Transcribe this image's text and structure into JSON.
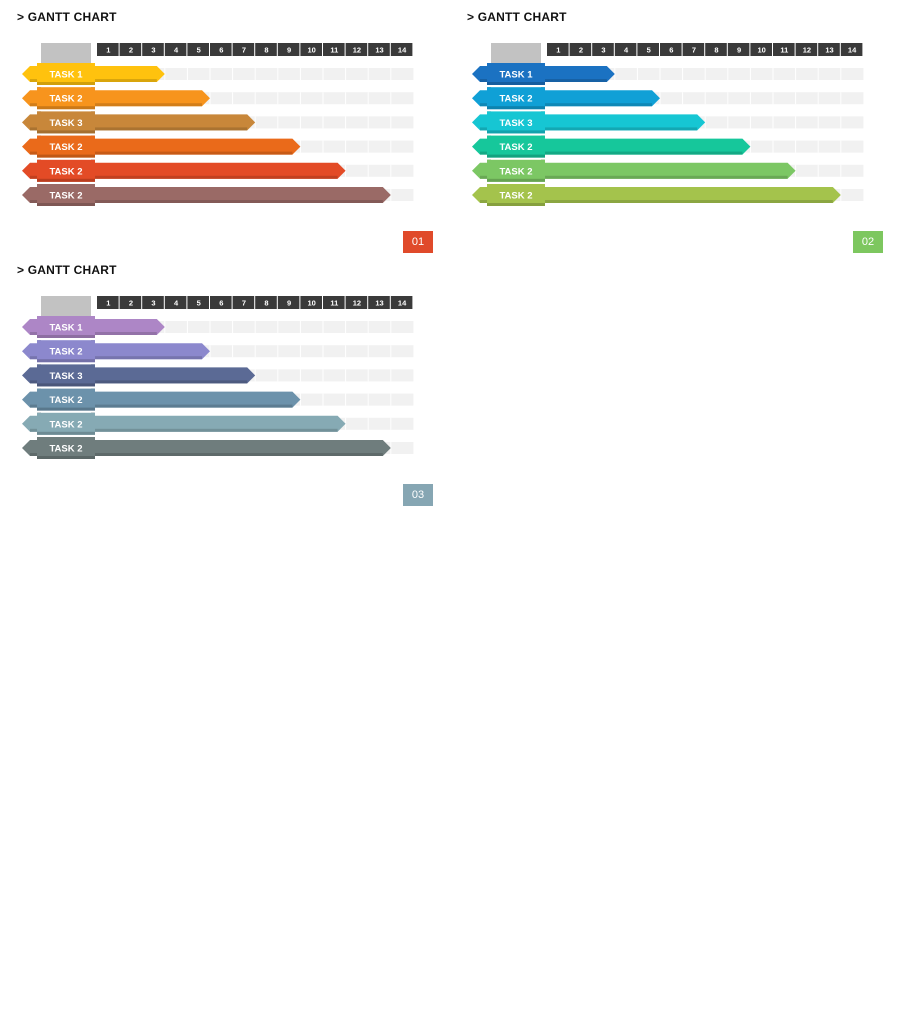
{
  "charts": [
    {
      "title": "> GANTT CHART",
      "badge": "01",
      "badge_color": "#e04a2a",
      "colors": [
        "#ffc20e",
        "#f7941d",
        "#c8873a",
        "#ea6a1a",
        "#e34b26",
        "#9a6a66"
      ]
    },
    {
      "title": "> GANTT CHART",
      "badge": "02",
      "badge_color": "#7dc75f",
      "colors": [
        "#1b72c2",
        "#10a0d6",
        "#16c6d3",
        "#16c79b",
        "#7cc764",
        "#a4c34c"
      ]
    },
    {
      "title": "> GANTT CHART",
      "badge": "03",
      "badge_color": "#86a6b3",
      "colors": [
        "#ad86c6",
        "#8c88cd",
        "#5b6a95",
        "#6c92ab",
        "#86aab4",
        "#6f7d7d"
      ]
    }
  ],
  "chart_data": [
    {
      "type": "bar",
      "title": "> GANTT CHART",
      "categories": [
        "TASK 1",
        "TASK 2",
        "TASK 3",
        "TASK 2",
        "TASK 2",
        "TASK 2"
      ],
      "x_ticks": [
        "1",
        "2",
        "3",
        "4",
        "5",
        "6",
        "7",
        "8",
        "9",
        "10",
        "11",
        "12",
        "13",
        "14"
      ],
      "values": [
        3,
        5,
        7,
        9,
        11,
        13
      ],
      "xlim": [
        0,
        14
      ]
    },
    {
      "type": "bar",
      "title": "> GANTT CHART",
      "categories": [
        "TASK 1",
        "TASK 2",
        "TASK 3",
        "TASK 2",
        "TASK 2",
        "TASK 2"
      ],
      "x_ticks": [
        "1",
        "2",
        "3",
        "4",
        "5",
        "6",
        "7",
        "8",
        "9",
        "10",
        "11",
        "12",
        "13",
        "14"
      ],
      "values": [
        3,
        5,
        7,
        9,
        11,
        13
      ],
      "xlim": [
        0,
        14
      ]
    },
    {
      "type": "bar",
      "title": "> GANTT CHART",
      "categories": [
        "TASK 1",
        "TASK 2",
        "TASK 3",
        "TASK 2",
        "TASK 2",
        "TASK 2"
      ],
      "x_ticks": [
        "1",
        "2",
        "3",
        "4",
        "5",
        "6",
        "7",
        "8",
        "9",
        "10",
        "11",
        "12",
        "13",
        "14"
      ],
      "values": [
        3,
        5,
        7,
        9,
        11,
        13
      ],
      "xlim": [
        0,
        14
      ]
    }
  ]
}
